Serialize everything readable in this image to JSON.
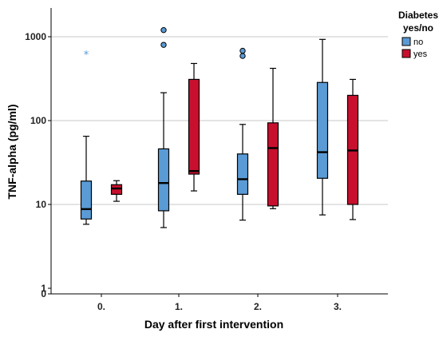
{
  "chart_data": {
    "type": "boxplot",
    "title": "",
    "xlabel": "Day after first intervention",
    "ylabel": "TNF-alpha (pg/ml)",
    "yscale": "log",
    "ylim": [
      0,
      2000
    ],
    "yticks": [
      {
        "value": 1000,
        "label": "1000"
      },
      {
        "value": 100,
        "label": "100"
      },
      {
        "value": 10,
        "label": "10"
      },
      {
        "value": 1,
        "label": "1"
      },
      {
        "value": 0,
        "label": "0"
      }
    ],
    "categories": [
      "0.",
      "1.",
      "2.",
      "3."
    ],
    "legend": {
      "title_line1": "Diabetes",
      "title_line2": "yes/no",
      "position": "top-right"
    },
    "colors": {
      "no": "#5b9bd5",
      "yes": "#c8102e",
      "grid": "#c8c8c8"
    },
    "series": [
      {
        "name": "no",
        "boxes": [
          {
            "whisker_low": 5.8,
            "q1": 6.7,
            "median": 8.8,
            "q3": 19,
            "whisker_high": 65,
            "outliers": [],
            "extremes": [
              620
            ]
          },
          {
            "whisker_low": 5.3,
            "q1": 8.4,
            "median": 18,
            "q3": 46,
            "whisker_high": 215,
            "outliers": [
              800,
              1200
            ],
            "extremes": []
          },
          {
            "whisker_low": 6.5,
            "q1": 13.2,
            "median": 20,
            "q3": 40,
            "whisker_high": 90,
            "outliers": [
              590,
              680
            ],
            "extremes": []
          },
          {
            "whisker_low": 7.5,
            "q1": 20.5,
            "median": 42,
            "q3": 285,
            "whisker_high": 930,
            "outliers": [],
            "extremes": []
          }
        ]
      },
      {
        "name": "yes",
        "boxes": [
          {
            "whisker_low": 10.9,
            "q1": 13.2,
            "median": 15.5,
            "q3": 17.2,
            "whisker_high": 19.2,
            "outliers": [],
            "extremes": []
          },
          {
            "whisker_low": 14.5,
            "q1": 23,
            "median": 25,
            "q3": 310,
            "whisker_high": 480,
            "outliers": [],
            "extremes": []
          },
          {
            "whisker_low": 8.9,
            "q1": 9.6,
            "median": 47,
            "q3": 94,
            "whisker_high": 420,
            "outliers": [],
            "extremes": []
          },
          {
            "whisker_low": 6.6,
            "q1": 10,
            "median": 44,
            "q3": 200,
            "whisker_high": 310,
            "outliers": [],
            "extremes": []
          }
        ]
      }
    ]
  }
}
